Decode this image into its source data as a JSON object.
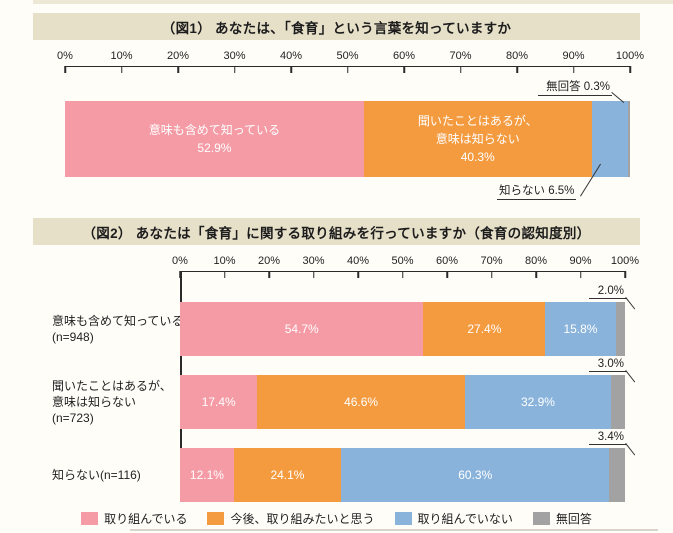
{
  "colors": {
    "pink": "#f49ba5",
    "orange": "#f49b40",
    "blue": "#89b3db",
    "gray": "#a2a2a2",
    "title_bg": "#e7e0c9",
    "axis": "#2a2a2a",
    "text": "#1f1f1f",
    "bar_text": "#ffffff"
  },
  "chart_data": [
    {
      "type": "bar",
      "stacked": true,
      "orientation": "horizontal",
      "title": "（図1） あなたは、「食育」という言葉を知っていますか",
      "axis_ticks": [
        "0%",
        "10%",
        "20%",
        "30%",
        "40%",
        "50%",
        "60%",
        "70%",
        "80%",
        "90%",
        "100%"
      ],
      "xlim": [
        0,
        100
      ],
      "grid": false,
      "segments": [
        {
          "name": "意味も含めて知っている",
          "value": 52.9,
          "value_text": "52.9%",
          "color": "pink",
          "label_inside": true,
          "label_lines": [
            "意味も含めて知っている"
          ]
        },
        {
          "name": "聞いたことはあるが、意味は知らない",
          "value": 40.3,
          "value_text": "40.3%",
          "color": "orange",
          "label_inside": true,
          "label_lines": [
            "聞いたことはあるが、",
            "意味は知らない"
          ]
        },
        {
          "name": "知らない",
          "value": 6.5,
          "value_text": "6.5%",
          "color": "blue",
          "label_inside": false,
          "label_lines": []
        },
        {
          "name": "無回答",
          "value": 0.3,
          "value_text": "0.3%",
          "color": "gray",
          "label_inside": false,
          "label_lines": []
        }
      ],
      "callouts": [
        {
          "text": "無回答 0.3%",
          "position": "top-right"
        },
        {
          "text": "知らない 6.5%",
          "position": "bottom-right"
        }
      ]
    },
    {
      "type": "bar",
      "stacked": true,
      "orientation": "horizontal",
      "title": "（図2） あなたは「食育」に関する取り組みを行っていますか（食育の認知度別）",
      "axis_ticks": [
        "0%",
        "10%",
        "20%",
        "30%",
        "40%",
        "50%",
        "60%",
        "70%",
        "80%",
        "90%",
        "100%"
      ],
      "xlim": [
        0,
        100
      ],
      "grid": false,
      "series": [
        "取り組んでいる",
        "今後、取り組みたいと思う",
        "取り組んでいない",
        "無回答"
      ],
      "series_colors": [
        "pink",
        "orange",
        "blue",
        "gray"
      ],
      "categories": [
        {
          "label_lines": [
            "意味も含めて知っている",
            "(n=948)"
          ],
          "values": [
            54.7,
            27.4,
            15.8,
            2.0
          ],
          "value_texts": [
            "54.7%",
            "27.4%",
            "15.8%",
            ""
          ],
          "annotation": "2.0%"
        },
        {
          "label_lines": [
            "聞いたことはあるが、",
            "意味は知らない",
            "(n=723)"
          ],
          "values": [
            17.4,
            46.6,
            32.9,
            3.0
          ],
          "value_texts": [
            "17.4%",
            "46.6%",
            "32.9%",
            ""
          ],
          "annotation": "3.0%"
        },
        {
          "label_lines": [
            "知らない(n=116)"
          ],
          "values": [
            12.1,
            24.1,
            60.3,
            3.4
          ],
          "value_texts": [
            "12.1%",
            "24.1%",
            "60.3%",
            ""
          ],
          "annotation": "3.4%"
        }
      ],
      "legend": [
        {
          "label": "取り組んでいる",
          "color": "pink"
        },
        {
          "label": "今後、取り組みたいと思う",
          "color": "orange"
        },
        {
          "label": "取り組んでいない",
          "color": "blue"
        },
        {
          "label": "無回答",
          "color": "gray"
        }
      ]
    }
  ]
}
